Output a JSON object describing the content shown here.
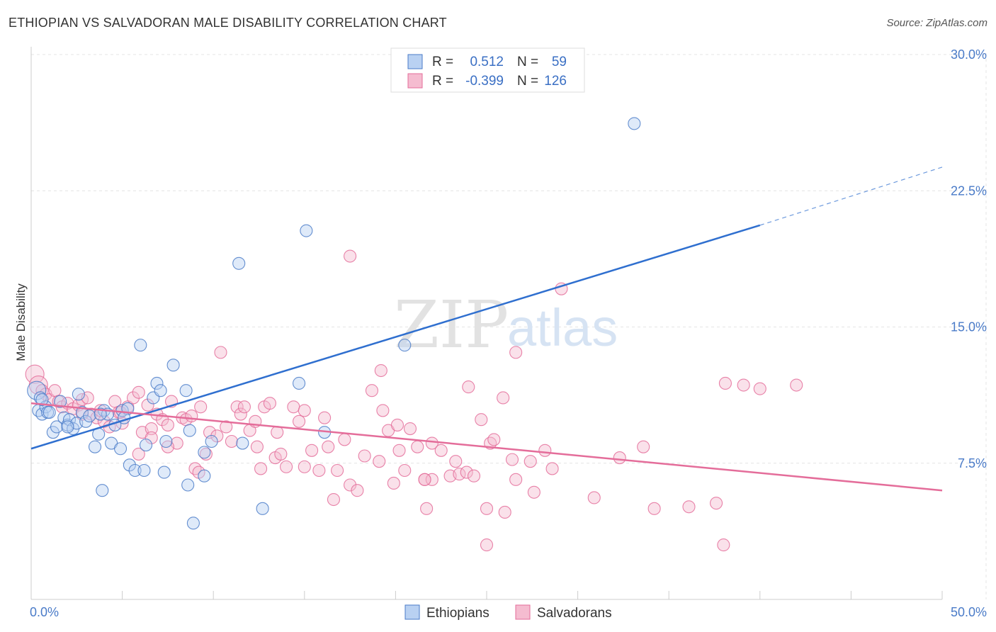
{
  "header": {
    "title": "ETHIOPIAN VS SALVADORAN MALE DISABILITY CORRELATION CHART",
    "source": "Source: ZipAtlas.com"
  },
  "watermark": {
    "zip": "ZIP",
    "atlas": "atlas"
  },
  "colors": {
    "blue": "#4a7bc8",
    "blue_fill": "#b9d1f2",
    "blue_line": "#2f6fcf",
    "pink": "#e46d9a",
    "pink_fill": "#f5bcd0",
    "pink_line": "#e46d9a"
  },
  "chart_data": {
    "type": "scatter",
    "title": "ETHIOPIAN VS SALVADORAN MALE DISABILITY CORRELATION CHART",
    "xlabel": "",
    "ylabel": "Male Disability",
    "xlim": [
      0,
      50
    ],
    "ylim": [
      0,
      30
    ],
    "x_tick_labels": [
      "0.0%",
      "50.0%"
    ],
    "y_ticks": [
      7.5,
      15.0,
      22.5,
      30.0
    ],
    "y_tick_labels": [
      "7.5%",
      "15.0%",
      "22.5%",
      "30.0%"
    ],
    "grid": true,
    "legend_top": [
      {
        "r_label": "R =",
        "r_value": "0.512",
        "n_label": "N =",
        "n_value": "59"
      },
      {
        "r_label": "R =",
        "r_value": "-0.399",
        "n_label": "N =",
        "n_value": "126"
      }
    ],
    "series": [
      {
        "name": "Ethiopians",
        "color": "blue",
        "trend": {
          "x0": 0,
          "y0": 8.3,
          "x1": 40,
          "y1": 20.6,
          "dash_to_x": 50,
          "dash_to_y": 23.8
        },
        "points": [
          [
            0.3,
            11.5
          ],
          [
            0.5,
            11.1
          ],
          [
            0.4,
            10.4
          ],
          [
            0.6,
            10.2
          ],
          [
            0.8,
            10.6
          ],
          [
            0.9,
            10.3
          ],
          [
            1.2,
            9.2
          ],
          [
            1.4,
            9.5
          ],
          [
            1.6,
            10.9
          ],
          [
            1.8,
            10.0
          ],
          [
            2.0,
            9.6
          ],
          [
            2.1,
            9.9
          ],
          [
            2.3,
            9.4
          ],
          [
            2.5,
            9.7
          ],
          [
            2.6,
            11.3
          ],
          [
            2.8,
            10.3
          ],
          [
            3.0,
            9.8
          ],
          [
            3.2,
            10.1
          ],
          [
            3.5,
            8.4
          ],
          [
            3.7,
            9.1
          ],
          [
            3.9,
            6.0
          ],
          [
            4.0,
            10.4
          ],
          [
            4.2,
            10.2
          ],
          [
            4.4,
            8.6
          ],
          [
            4.6,
            9.6
          ],
          [
            4.9,
            8.3
          ],
          [
            5.0,
            10.4
          ],
          [
            5.3,
            10.5
          ],
          [
            5.4,
            7.4
          ],
          [
            5.7,
            7.1
          ],
          [
            6.0,
            14.0
          ],
          [
            6.2,
            7.1
          ],
          [
            6.3,
            8.5
          ],
          [
            6.7,
            11.1
          ],
          [
            6.9,
            11.9
          ],
          [
            7.1,
            11.5
          ],
          [
            7.3,
            7.0
          ],
          [
            7.4,
            8.7
          ],
          [
            7.8,
            12.9
          ],
          [
            8.5,
            11.5
          ],
          [
            8.6,
            6.3
          ],
          [
            8.7,
            9.3
          ],
          [
            9.5,
            8.1
          ],
          [
            9.5,
            6.8
          ],
          [
            9.9,
            8.7
          ],
          [
            8.9,
            4.2
          ],
          [
            11.4,
            18.5
          ],
          [
            11.6,
            8.6
          ],
          [
            12.7,
            5.0
          ],
          [
            14.7,
            11.9
          ],
          [
            15.1,
            20.3
          ],
          [
            16.1,
            9.2
          ],
          [
            20.5,
            14.0
          ],
          [
            33.1,
            26.2
          ],
          [
            2.0,
            9.5
          ],
          [
            1.0,
            10.3
          ],
          [
            3.8,
            10.2
          ],
          [
            5.1,
            10.0
          ],
          [
            0.6,
            11.0
          ]
        ]
      },
      {
        "name": "Salvadorans",
        "color": "pink",
        "trend": {
          "x0": 0,
          "y0": 10.8,
          "x1": 50,
          "y1": 6.0
        },
        "points": [
          [
            0.2,
            12.4
          ],
          [
            0.4,
            11.8
          ],
          [
            0.6,
            11.5
          ],
          [
            0.8,
            11.3
          ],
          [
            1.0,
            11.0
          ],
          [
            1.3,
            11.5
          ],
          [
            1.5,
            10.9
          ],
          [
            1.7,
            10.6
          ],
          [
            2.0,
            10.8
          ],
          [
            2.3,
            10.5
          ],
          [
            2.6,
            10.7
          ],
          [
            2.8,
            11.0
          ],
          [
            3.1,
            11.1
          ],
          [
            3.3,
            10.2
          ],
          [
            3.6,
            10.0
          ],
          [
            3.8,
            10.4
          ],
          [
            4.0,
            9.8
          ],
          [
            4.3,
            9.5
          ],
          [
            4.6,
            10.9
          ],
          [
            4.8,
            10.3
          ],
          [
            5.0,
            9.7
          ],
          [
            5.3,
            10.6
          ],
          [
            5.6,
            11.1
          ],
          [
            5.9,
            11.4
          ],
          [
            6.1,
            9.2
          ],
          [
            6.4,
            10.7
          ],
          [
            6.6,
            9.4
          ],
          [
            6.9,
            10.2
          ],
          [
            7.2,
            9.9
          ],
          [
            7.5,
            9.6
          ],
          [
            7.7,
            10.9
          ],
          [
            8.0,
            8.6
          ],
          [
            8.3,
            10.0
          ],
          [
            8.5,
            9.9
          ],
          [
            8.8,
            10.1
          ],
          [
            9.0,
            7.2
          ],
          [
            9.3,
            10.6
          ],
          [
            9.6,
            8.0
          ],
          [
            9.8,
            9.2
          ],
          [
            10.2,
            9.0
          ],
          [
            10.4,
            13.6
          ],
          [
            10.7,
            9.5
          ],
          [
            11.0,
            8.7
          ],
          [
            11.3,
            10.6
          ],
          [
            11.5,
            10.2
          ],
          [
            11.7,
            10.6
          ],
          [
            12.0,
            9.3
          ],
          [
            12.4,
            8.4
          ],
          [
            12.6,
            7.2
          ],
          [
            12.8,
            10.6
          ],
          [
            13.1,
            10.8
          ],
          [
            13.4,
            7.8
          ],
          [
            13.7,
            8.0
          ],
          [
            14.0,
            7.3
          ],
          [
            14.4,
            10.6
          ],
          [
            14.7,
            9.8
          ],
          [
            15.0,
            10.4
          ],
          [
            15.4,
            8.2
          ],
          [
            15.8,
            7.1
          ],
          [
            16.1,
            10.0
          ],
          [
            16.3,
            8.4
          ],
          [
            16.6,
            5.5
          ],
          [
            16.8,
            7.1
          ],
          [
            17.2,
            8.8
          ],
          [
            17.5,
            6.3
          ],
          [
            17.9,
            6.0
          ],
          [
            18.3,
            7.9
          ],
          [
            18.7,
            11.5
          ],
          [
            19.1,
            7.6
          ],
          [
            19.3,
            10.4
          ],
          [
            19.6,
            9.3
          ],
          [
            19.9,
            6.4
          ],
          [
            20.2,
            8.2
          ],
          [
            20.5,
            7.1
          ],
          [
            20.8,
            9.4
          ],
          [
            21.2,
            8.4
          ],
          [
            21.6,
            6.6
          ],
          [
            21.7,
            5.0
          ],
          [
            22.0,
            8.6
          ],
          [
            22.5,
            8.2
          ],
          [
            23.0,
            6.8
          ],
          [
            23.5,
            6.9
          ],
          [
            23.9,
            7.0
          ],
          [
            24.3,
            6.8
          ],
          [
            24.7,
            9.9
          ],
          [
            25.2,
            8.6
          ],
          [
            25.4,
            8.8
          ],
          [
            25.9,
            11.1
          ],
          [
            26.0,
            4.8
          ],
          [
            26.4,
            7.7
          ],
          [
            26.6,
            6.6
          ],
          [
            27.6,
            5.9
          ],
          [
            28.6,
            7.2
          ],
          [
            29.1,
            17.1
          ],
          [
            30.9,
            5.6
          ],
          [
            32.3,
            7.8
          ],
          [
            33.6,
            8.4
          ],
          [
            34.2,
            5.0
          ],
          [
            36.1,
            5.1
          ],
          [
            37.6,
            5.3
          ],
          [
            38.1,
            11.9
          ],
          [
            39.1,
            11.8
          ],
          [
            40.0,
            11.6
          ],
          [
            17.5,
            18.9
          ],
          [
            19.2,
            12.6
          ],
          [
            20.1,
            9.6
          ],
          [
            22.0,
            6.6
          ],
          [
            24.0,
            11.7
          ],
          [
            26.6,
            13.6
          ],
          [
            25.0,
            5.0
          ],
          [
            25.0,
            3.0
          ],
          [
            38.0,
            3.0
          ],
          [
            42.0,
            11.8
          ],
          [
            12.3,
            9.8
          ],
          [
            13.5,
            9.2
          ],
          [
            7.5,
            8.4
          ],
          [
            5.9,
            8.0
          ],
          [
            9.2,
            7.0
          ],
          [
            15.0,
            7.3
          ],
          [
            21.6,
            6.6
          ],
          [
            23.3,
            7.6
          ],
          [
            27.4,
            7.6
          ],
          [
            28.2,
            8.2
          ],
          [
            2.8,
            10.2
          ],
          [
            4.9,
            10.3
          ],
          [
            6.6,
            8.9
          ]
        ]
      }
    ]
  },
  "bottom_legend": [
    {
      "label": "Ethiopians",
      "color": "blue"
    },
    {
      "label": "Salvadorans",
      "color": "pink"
    }
  ]
}
